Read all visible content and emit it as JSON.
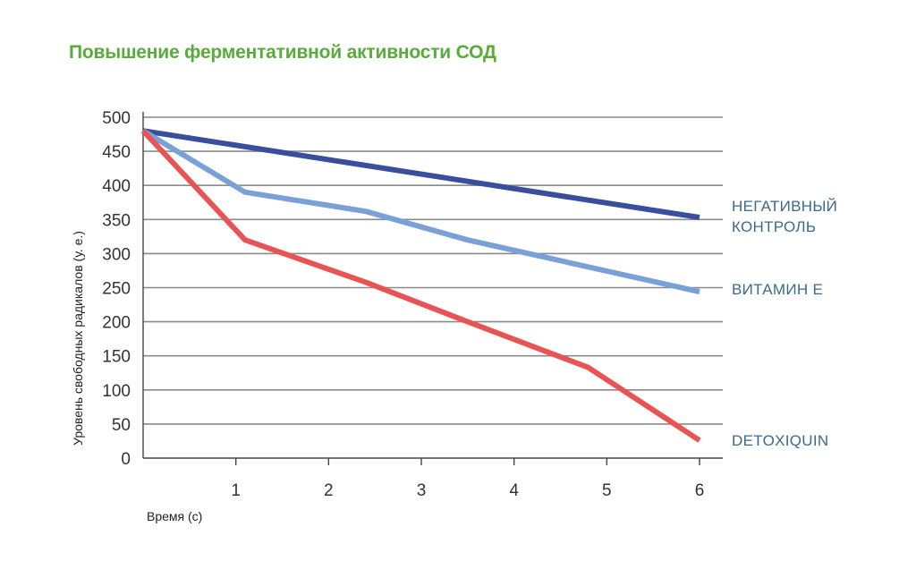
{
  "chart_data": {
    "type": "line",
    "title": "Повышение ферментативной активности СОД",
    "xlabel": "Время (с)",
    "ylabel": "Уровень свободных радикалов (у. е.)",
    "xlim": [
      0,
      6
    ],
    "ylim": [
      0,
      500
    ],
    "xticks": [
      "1",
      "2",
      "3",
      "4",
      "5",
      "6"
    ],
    "yticks": [
      "0",
      "50",
      "100",
      "150",
      "200",
      "250",
      "300",
      "350",
      "400",
      "450",
      "500"
    ],
    "grid": true,
    "legend": "inline-right",
    "series": [
      {
        "name_lines": [
          "НЕГАТИВНЫЙ",
          "КОНТРОЛЬ"
        ],
        "color": "#3a4e9e",
        "label_color": "#3a6a8c",
        "points": [
          [
            0,
            480
          ],
          [
            6,
            353
          ]
        ]
      },
      {
        "name_lines": [
          "ВИТАМИН Е"
        ],
        "color": "#7aa0d8",
        "label_color": "#3a6a8c",
        "points": [
          [
            0,
            480
          ],
          [
            1.1,
            390
          ],
          [
            2.4,
            362
          ],
          [
            3.5,
            320
          ],
          [
            6,
            244
          ]
        ]
      },
      {
        "name_lines": [
          "DETOXIQUIN"
        ],
        "color": "#e85454",
        "label_color": "#3a6a8c",
        "points": [
          [
            0,
            480
          ],
          [
            1.1,
            320
          ],
          [
            2.4,
            258
          ],
          [
            3.5,
            200
          ],
          [
            4.8,
            133
          ],
          [
            6,
            26
          ]
        ]
      }
    ]
  }
}
